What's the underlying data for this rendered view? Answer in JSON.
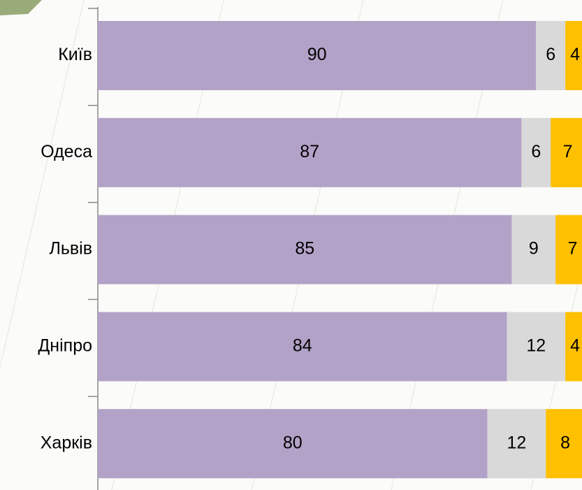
{
  "chart_data": {
    "type": "bar",
    "orientation": "horizontal",
    "stacked": true,
    "categories": [
      "Київ",
      "Одеса",
      "Львів",
      "Дніпро",
      "Харків"
    ],
    "series": [
      {
        "color": "#b3a2c7",
        "values": [
          90,
          87,
          85,
          84,
          80
        ]
      },
      {
        "color": "#d9d9d9",
        "values": [
          6,
          6,
          9,
          12,
          12
        ]
      },
      {
        "color": "#ffc000",
        "values": [
          4,
          7,
          7,
          4,
          8
        ]
      }
    ]
  }
}
